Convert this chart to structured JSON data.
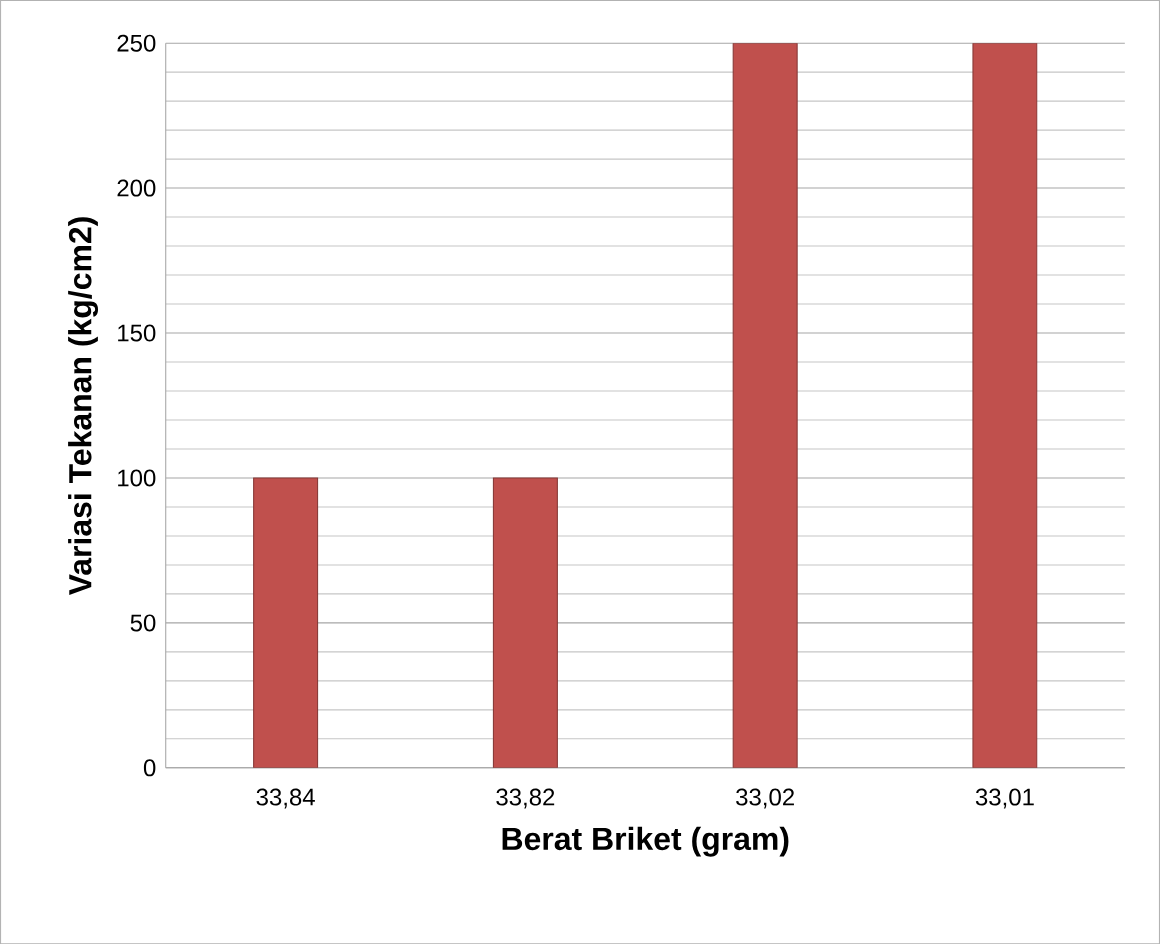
{
  "chart_data": {
    "type": "bar",
    "xlabel": "Berat Briket (gram)",
    "ylabel": "Variasi Tekanan (kg/cm2)",
    "categories": [
      "33,84",
      "33,82",
      "33,02",
      "33,01"
    ],
    "values": [
      100,
      100,
      250,
      250
    ],
    "color": "#c0504d",
    "ylim": [
      0,
      250
    ],
    "yticks": [
      0,
      50,
      100,
      150,
      200,
      250
    ],
    "grid": "y"
  }
}
